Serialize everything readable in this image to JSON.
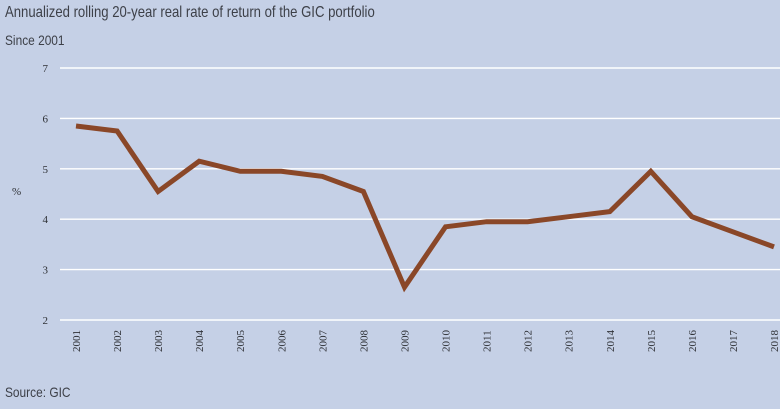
{
  "header": {
    "title": "Annualized rolling 20-year real rate of return of the GIC portfolio",
    "subtitle": "Since 2001"
  },
  "footer": {
    "source": "Source: GIC"
  },
  "colors": {
    "background": "#c5d0e6",
    "line": "#8a4728",
    "grid": "#ffffff",
    "text": "#3d4048"
  },
  "chart_data": {
    "type": "line",
    "title": "Annualized rolling 20-year real rate of return of the GIC portfolio",
    "subtitle": "Since 2001",
    "xlabel": "",
    "ylabel": "%",
    "ylim": [
      2,
      7
    ],
    "yticks": [
      2,
      3,
      4,
      5,
      6,
      7
    ],
    "grid": true,
    "categories": [
      "2001",
      "2002",
      "2003",
      "2004",
      "2005",
      "2006",
      "2007",
      "2008",
      "2009",
      "2010",
      "2011",
      "2012",
      "2013",
      "2014",
      "2015",
      "2016",
      "2017",
      "2018"
    ],
    "series": [
      {
        "name": "GIC portfolio",
        "values": [
          5.85,
          5.75,
          4.55,
          5.15,
          4.95,
          4.95,
          4.85,
          4.55,
          2.65,
          3.85,
          3.95,
          3.95,
          4.05,
          4.15,
          4.95,
          4.05,
          3.75,
          3.45
        ]
      }
    ]
  }
}
